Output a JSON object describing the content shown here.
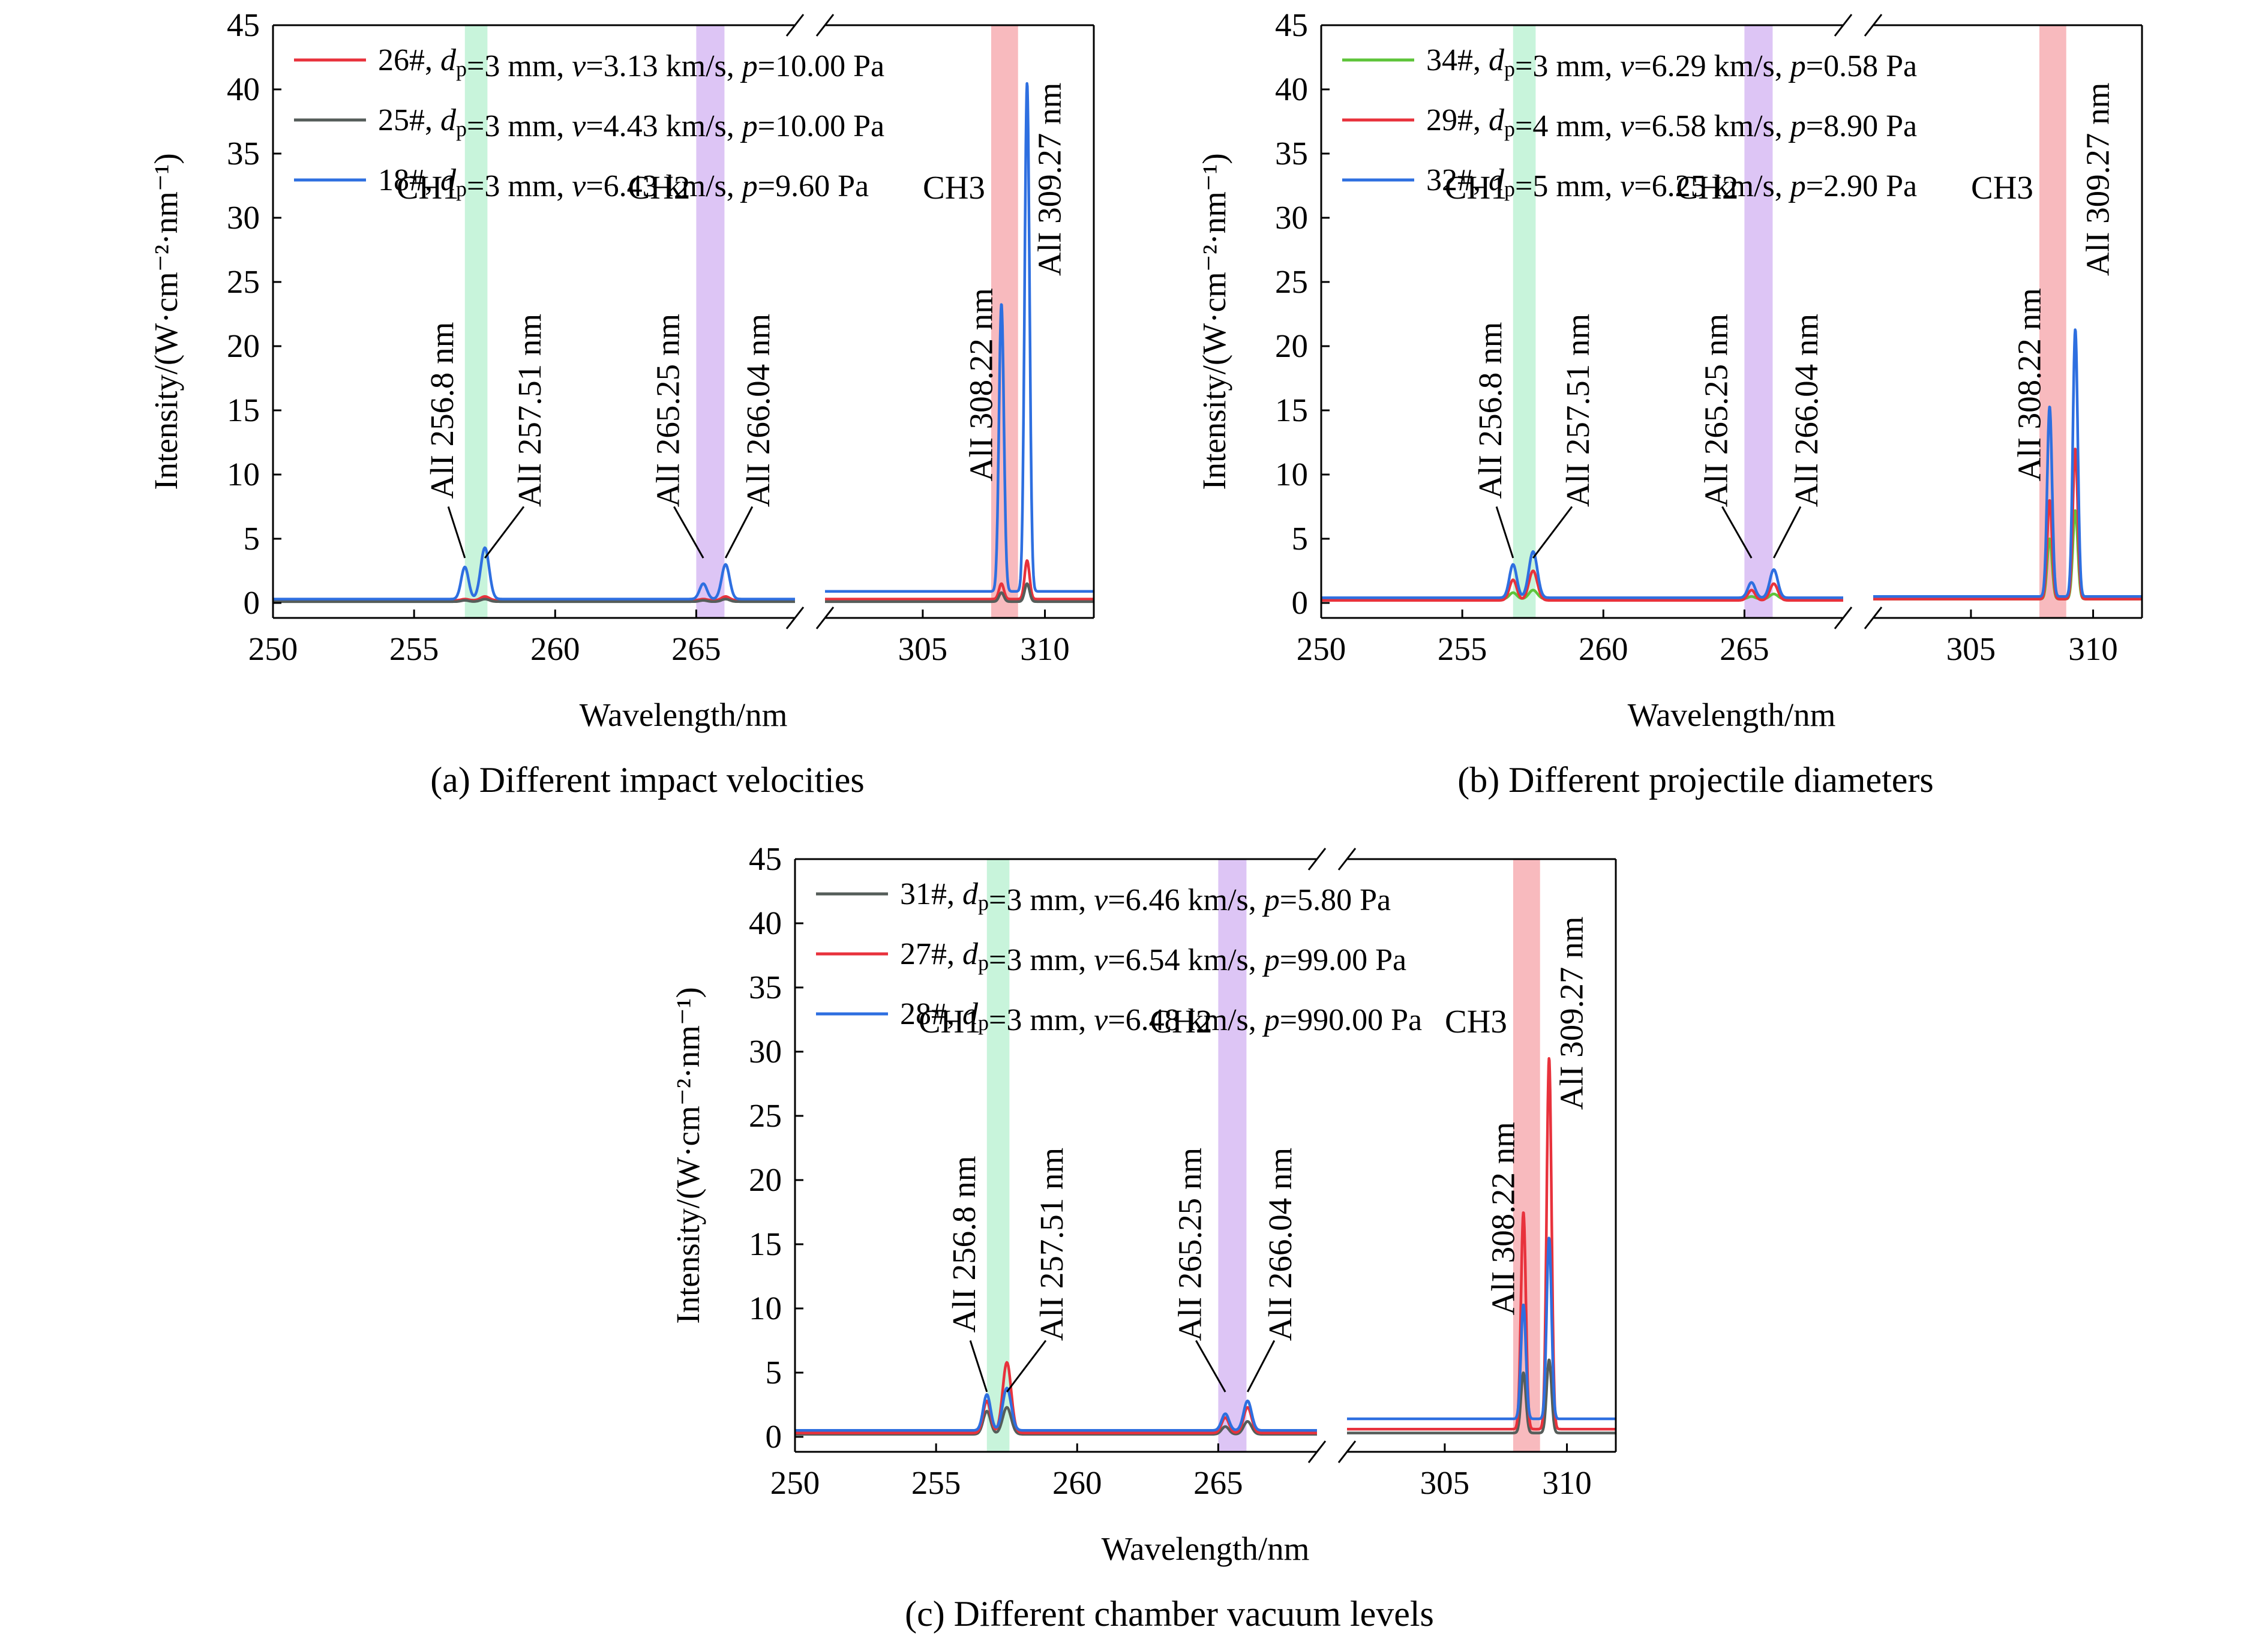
{
  "chart_data": [
    {
      "type": "line",
      "caption": "(a) Different impact velocities",
      "xlabel": "Wavelength/nm",
      "ylabel": "Intensity/(W·cm⁻²·nm⁻¹)",
      "ylim": [
        0,
        45
      ],
      "yticks": [
        "0",
        "5",
        "10",
        "15",
        "20",
        "25",
        "30",
        "35",
        "40",
        "45"
      ],
      "x_segments": [
        [
          250,
          268.5
        ],
        [
          301,
          312
        ]
      ],
      "xticks": [
        "250",
        "255",
        "260",
        "265",
        "305",
        "310"
      ],
      "bands": [
        {
          "label": "CH1",
          "x0": 256.8,
          "x1": 257.6,
          "color": "#b5f0cf"
        },
        {
          "label": "CH2",
          "x0": 265.0,
          "x1": 266.0,
          "color": "#d2b2f2"
        },
        {
          "label": "CH3",
          "x0": 307.8,
          "x1": 308.9,
          "color": "#f5a3a8"
        }
      ],
      "lines": [
        {
          "label": "AlI 256.8 nm",
          "x": 256.8
        },
        {
          "label": "AlI 257.51 nm",
          "x": 257.51
        },
        {
          "label": "AlI 265.25 nm",
          "x": 265.25
        },
        {
          "label": "AlI 266.04 nm",
          "x": 266.04
        },
        {
          "label": "AlI 308.22 nm",
          "x": 308.22
        },
        {
          "label": "AlI 309.27 nm",
          "x": 309.27
        }
      ],
      "legend": [
        {
          "name": "26#, dp=3 mm, v=3.13 km/s, p=10.00 Pa",
          "id": "26#",
          "dp": "3 mm",
          "v": "3.13 km/s",
          "p": "10.00 Pa",
          "color": "#e8323c"
        },
        {
          "name": "25#, dp=3 mm, v=4.43 km/s, p=10.00 Pa",
          "id": "25#",
          "dp": "3 mm",
          "v": "4.43 km/s",
          "p": "10.00 Pa",
          "color": "#555d5a"
        },
        {
          "name": "18#, dp=3 mm, v=6.43 km/s, p=9.60 Pa",
          "id": "18#",
          "dp": "3 mm",
          "v": "6.43 km/s",
          "p": "9.60 Pa",
          "color": "#2e6fe0"
        }
      ],
      "series": [
        {
          "name": "26#",
          "color": "#e8323c",
          "baseline": [
            0.2,
            0.3
          ],
          "peaks": [
            0.3,
            0.5,
            0.3,
            0.5,
            1.5,
            3.3
          ]
        },
        {
          "name": "25#",
          "color": "#555d5a",
          "baseline": [
            0.1,
            0.1
          ],
          "peaks": [
            0.2,
            0.3,
            0.2,
            0.3,
            0.8,
            1.5
          ]
        },
        {
          "name": "18#",
          "color": "#2e6fe0",
          "baseline": [
            0.3,
            0.9
          ],
          "peaks": [
            2.8,
            4.3,
            1.5,
            3.0,
            23.3,
            40.5
          ]
        }
      ]
    },
    {
      "type": "line",
      "caption": "(b) Different projectile diameters",
      "xlabel": "Wavelength/nm",
      "ylabel": "Intensity/(W·cm⁻²·nm⁻¹)",
      "ylim": [
        0,
        45
      ],
      "yticks": [
        "0",
        "5",
        "10",
        "15",
        "20",
        "25",
        "30",
        "35",
        "40",
        "45"
      ],
      "x_segments": [
        [
          250,
          268.5
        ],
        [
          301,
          312
        ]
      ],
      "xticks": [
        "250",
        "255",
        "260",
        "265",
        "305",
        "310"
      ],
      "bands": [
        {
          "label": "CH1",
          "x0": 256.8,
          "x1": 257.6,
          "color": "#b5f0cf"
        },
        {
          "label": "CH2",
          "x0": 265.0,
          "x1": 266.0,
          "color": "#d2b2f2"
        },
        {
          "label": "CH3",
          "x0": 307.8,
          "x1": 308.9,
          "color": "#f5a3a8"
        }
      ],
      "lines": [
        {
          "label": "AlI 256.8 nm",
          "x": 256.8
        },
        {
          "label": "AlI 257.51 nm",
          "x": 257.51
        },
        {
          "label": "AlI 265.25 nm",
          "x": 265.25
        },
        {
          "label": "AlI 266.04 nm",
          "x": 266.04
        },
        {
          "label": "AlI 308.22 nm",
          "x": 308.22
        },
        {
          "label": "AlI 309.27 nm",
          "x": 309.27
        }
      ],
      "legend": [
        {
          "name": "34#, dp=3 mm, v=6.29 km/s, p=0.58 Pa",
          "id": "34#",
          "dp": "3 mm",
          "v": "6.29 km/s",
          "p": "0.58 Pa",
          "color": "#5ec43a"
        },
        {
          "name": "29#, dp=4 mm, v=6.58 km/s, p=8.90 Pa",
          "id": "29#",
          "dp": "4 mm",
          "v": "6.58 km/s",
          "p": "8.90 Pa",
          "color": "#e8323c"
        },
        {
          "name": "32#, dp=5 mm, v=6.25 km/s, p=2.90 Pa",
          "id": "32#",
          "dp": "5 mm",
          "v": "6.25 km/s",
          "p": "2.90 Pa",
          "color": "#2e6fe0"
        }
      ],
      "series": [
        {
          "name": "34#",
          "color": "#5ec43a",
          "baseline": [
            0.3,
            0.3
          ],
          "peaks": [
            0.8,
            1.0,
            0.5,
            0.7,
            5.0,
            7.2
          ]
        },
        {
          "name": "29#",
          "color": "#e8323c",
          "baseline": [
            0.2,
            0.3
          ],
          "peaks": [
            1.8,
            2.5,
            1.0,
            1.5,
            8.0,
            12.0
          ]
        },
        {
          "name": "32#",
          "color": "#2e6fe0",
          "baseline": [
            0.4,
            0.5
          ],
          "peaks": [
            3.0,
            4.0,
            1.6,
            2.6,
            15.3,
            21.3
          ]
        }
      ]
    },
    {
      "type": "line",
      "caption": "(c) Different chamber vacuum levels",
      "xlabel": "Wavelength/nm",
      "ylabel": "Intensity/(W·cm⁻²·nm⁻¹)",
      "ylim": [
        0,
        45
      ],
      "yticks": [
        "0",
        "5",
        "10",
        "15",
        "20",
        "25",
        "30",
        "35",
        "40",
        "45"
      ],
      "x_segments": [
        [
          250,
          268.5
        ],
        [
          301,
          312
        ]
      ],
      "xticks": [
        "250",
        "255",
        "260",
        "265",
        "305",
        "310"
      ],
      "bands": [
        {
          "label": "CH1",
          "x0": 256.8,
          "x1": 257.6,
          "color": "#b5f0cf"
        },
        {
          "label": "CH2",
          "x0": 265.0,
          "x1": 266.0,
          "color": "#d2b2f2"
        },
        {
          "label": "CH3",
          "x0": 307.8,
          "x1": 308.9,
          "color": "#f5a3a8"
        }
      ],
      "lines": [
        {
          "label": "AlI 256.8 nm",
          "x": 256.8
        },
        {
          "label": "AlI 257.51 nm",
          "x": 257.51
        },
        {
          "label": "AlI 265.25 nm",
          "x": 265.25
        },
        {
          "label": "AlI 266.04 nm",
          "x": 266.04
        },
        {
          "label": "AlI 308.22 nm",
          "x": 308.22
        },
        {
          "label": "AlI 309.27 nm",
          "x": 309.27
        }
      ],
      "legend": [
        {
          "name": "31#, dp=3 mm, v=6.46 km/s, p=5.80 Pa",
          "id": "31#",
          "dp": "3 mm",
          "v": "6.46 km/s",
          "p": "5.80 Pa",
          "color": "#555d5a"
        },
        {
          "name": "27#, dp=3 mm, v=6.54 km/s, p=99.00 Pa",
          "id": "27#",
          "dp": "3 mm",
          "v": "6.54 km/s",
          "p": "99.00 Pa",
          "color": "#e8323c"
        },
        {
          "name": "28#, dp=3 mm, v=6.48 km/s, p=990.00 Pa",
          "id": "28#",
          "dp": "3 mm",
          "v": "6.48 km/s",
          "p": "990.00 Pa",
          "color": "#2e6fe0"
        }
      ],
      "series": [
        {
          "name": "31#",
          "color": "#555d5a",
          "baseline": [
            0.2,
            0.3
          ],
          "peaks": [
            2.0,
            2.3,
            0.8,
            1.2,
            5.0,
            6.0
          ]
        },
        {
          "name": "27#",
          "color": "#e8323c",
          "baseline": [
            0.3,
            0.6
          ],
          "peaks": [
            2.8,
            5.8,
            1.5,
            2.3,
            17.5,
            29.5
          ]
        },
        {
          "name": "28#",
          "color": "#2e6fe0",
          "baseline": [
            0.5,
            1.4
          ],
          "peaks": [
            3.3,
            3.8,
            1.8,
            2.8,
            10.3,
            15.5
          ]
        }
      ]
    }
  ]
}
